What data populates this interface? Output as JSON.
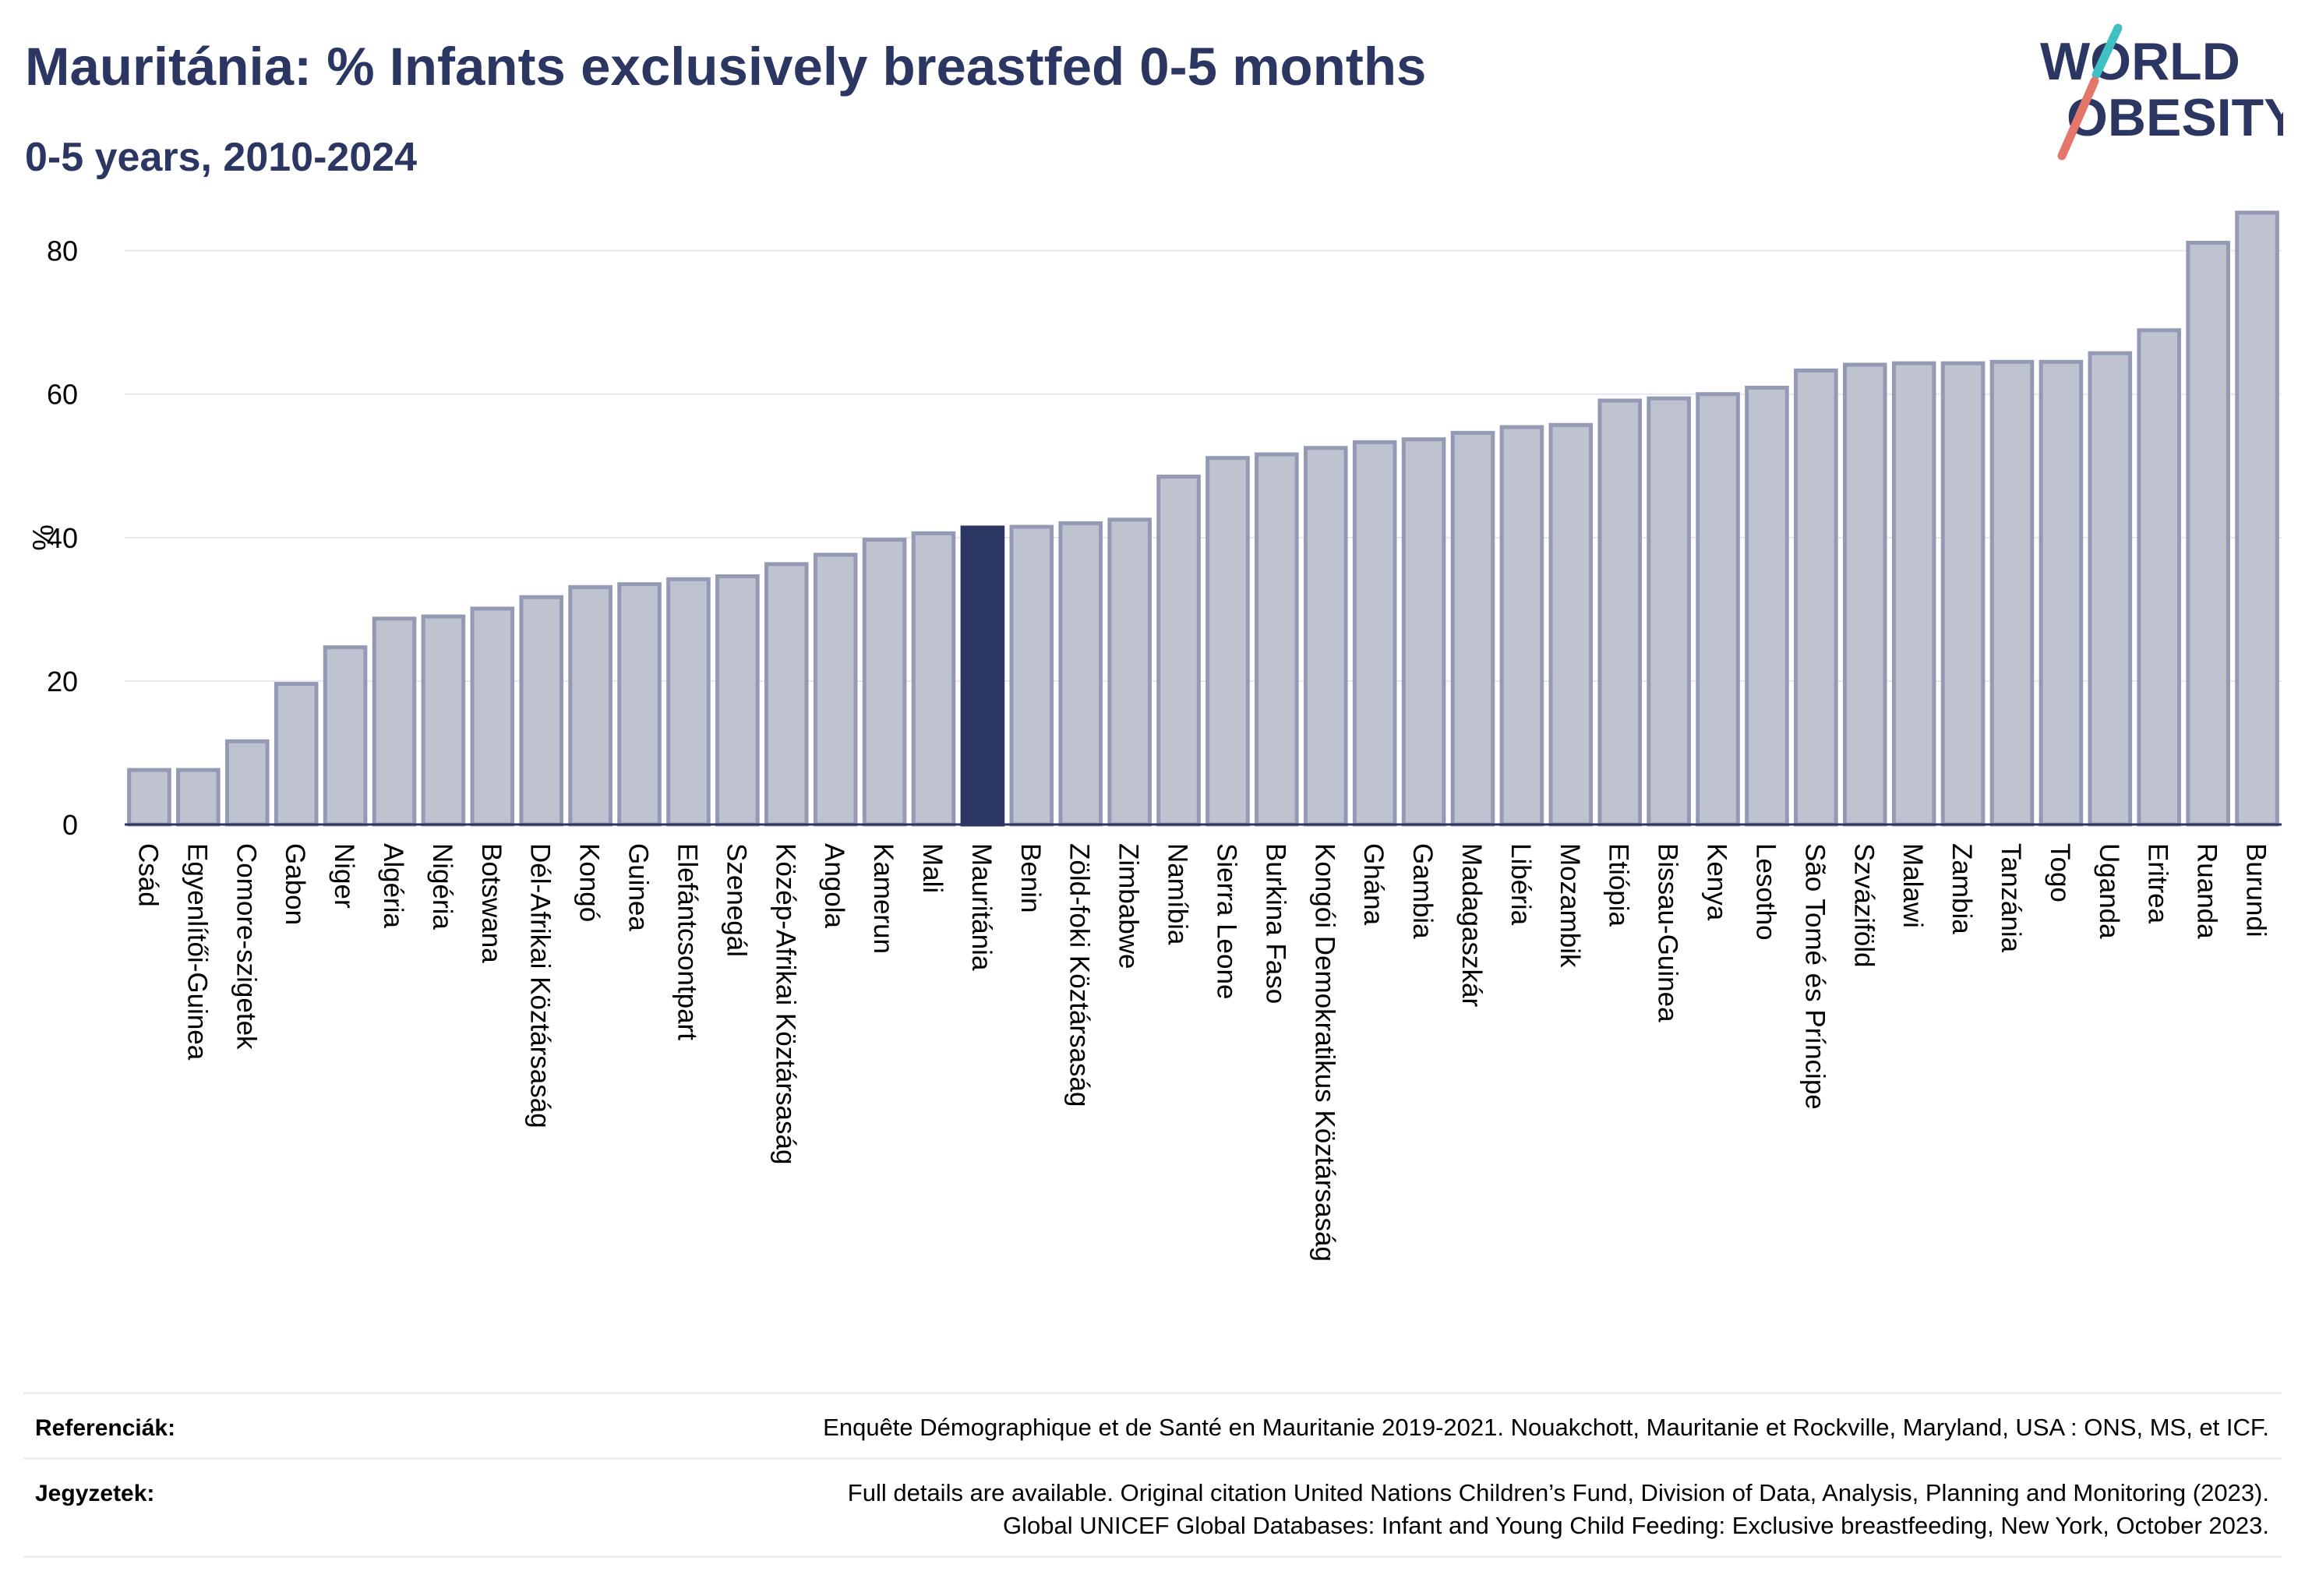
{
  "header": {
    "title": "Mauritánia: % Infants exclusively breastfed 0-5 months",
    "subtitle": "0-5 years, 2010-2024"
  },
  "logo": {
    "line1": "WORLD",
    "line2": "OBESITY"
  },
  "colors": {
    "bar_fill": "#bfc3d0",
    "bar_stroke": "#9499b4",
    "highlight": "#2b3662",
    "text_dark": "#2b3662",
    "logo_teal": "#3fc0c2",
    "logo_coral": "#e5766a",
    "grid": "#e6e8ee"
  },
  "chart_data": {
    "type": "bar",
    "ylabel": "%",
    "ylim": [
      0,
      88
    ],
    "yticks": [
      0,
      20,
      40,
      60,
      80
    ],
    "highlight": "Mauritánia",
    "grid": true,
    "categories": [
      "Csád",
      "Egyenlítői-Guinea",
      "Comore-szigetek",
      "Gabon",
      "Niger",
      "Algéria",
      "Nigéria",
      "Botswana",
      "Dél-Afrikai Köztársaság",
      "Kongó",
      "Guinea",
      "Elefántcsontpart",
      "Szenegál",
      "Közép-Afrikai Köztársaság",
      "Angola",
      "Kamerun",
      "Mali",
      "Mauritánia",
      "Benin",
      "Zöld-foki Köztársaság",
      "Zimbabwe",
      "Namíbia",
      "Sierra Leone",
      "Burkina Faso",
      "Kongói Demokratikus Köztársaság",
      "Ghána",
      "Gambia",
      "Madagaszkár",
      "Libéria",
      "Mozambik",
      "Etiópia",
      "Bissau-Guinea",
      "Kenya",
      "Lesotho",
      "São Tomé és Príncipe",
      "Szváziföld",
      "Malawi",
      "Zambia",
      "Tanzánia",
      "Togo",
      "Uganda",
      "Eritrea",
      "Ruanda",
      "Burundi"
    ],
    "values": [
      7.6,
      7.6,
      11.6,
      19.6,
      24.7,
      28.7,
      29.0,
      30.1,
      31.7,
      33.1,
      33.5,
      34.2,
      34.6,
      36.3,
      37.6,
      39.7,
      40.6,
      41.4,
      41.5,
      42.0,
      42.5,
      48.5,
      51.1,
      51.6,
      52.5,
      53.3,
      53.7,
      54.6,
      55.4,
      55.7,
      59.1,
      59.4,
      60.0,
      60.9,
      63.3,
      64.1,
      64.3,
      64.3,
      64.5,
      64.5,
      65.7,
      68.9,
      81.1,
      85.3
    ]
  },
  "footer": {
    "references_label": "Referenciák:",
    "references_text": "Enquête Démographique et de Santé en Mauritanie 2019-2021. Nouakchott, Mauritanie et Rockville, Maryland, USA : ONS, MS, et ICF.",
    "notes_label": "Jegyzetek:",
    "notes_line1": "Full details are available. Original citation United Nations Children’s Fund, Division of Data, Analysis, Planning and Monitoring (2023).",
    "notes_line2": "Global UNICEF Global Databases: Infant and Young Child Feeding: Exclusive breastfeeding, New York, October 2023."
  }
}
